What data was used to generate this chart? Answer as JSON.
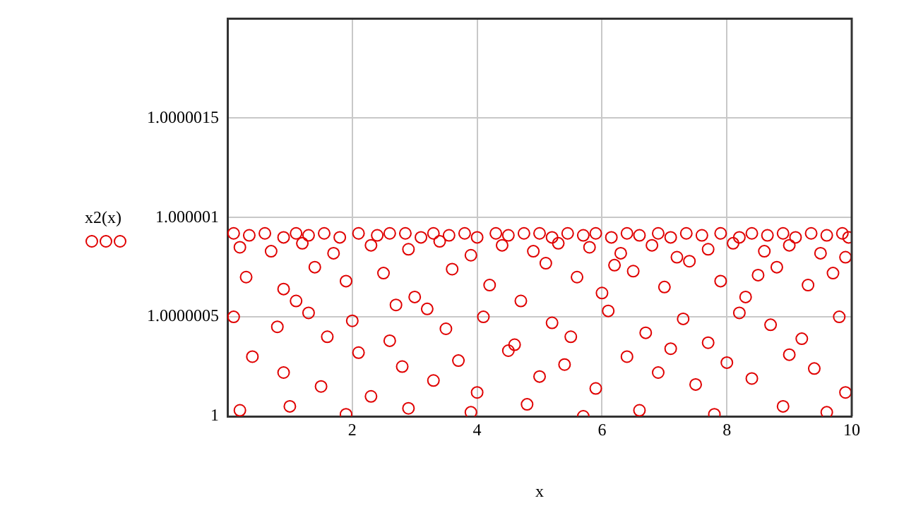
{
  "chart_data": {
    "type": "scatter",
    "xlabel": "x",
    "ylabel": "x2(x)",
    "xlim": [
      0,
      10
    ],
    "xticks": [
      2,
      4,
      6,
      8,
      10
    ],
    "ylim": [
      1,
      1.000002
    ],
    "yticks": [
      1,
      1.0000005,
      1.000001,
      1.0000015
    ],
    "grid": true,
    "legend": false,
    "marker": "circle",
    "x": [
      0.1,
      0.35,
      0.6,
      0.9,
      1.1,
      1.3,
      1.55,
      1.8,
      2.1,
      2.4,
      2.6,
      2.85,
      3.1,
      3.3,
      3.55,
      3.8,
      4.0,
      4.3,
      4.5,
      4.75,
      5.0,
      5.2,
      5.45,
      5.7,
      5.9,
      6.15,
      6.4,
      6.6,
      6.9,
      7.1,
      7.35,
      7.6,
      7.9,
      8.2,
      8.4,
      8.65,
      8.9,
      9.1,
      9.35,
      9.6,
      9.85,
      9.95,
      0.2,
      0.7,
      1.2,
      1.7,
      2.3,
      2.9,
      3.4,
      3.9,
      4.4,
      4.9,
      5.3,
      5.8,
      6.3,
      6.8,
      7.2,
      7.7,
      8.1,
      8.6,
      9.0,
      9.5,
      9.9,
      0.3,
      0.9,
      1.4,
      1.9,
      2.5,
      3.0,
      3.6,
      4.2,
      4.7,
      5.1,
      5.6,
      6.0,
      6.5,
      7.0,
      7.4,
      7.9,
      8.3,
      8.8,
      9.3,
      9.7,
      1.1,
      2.7,
      6.2,
      8.5,
      0.1,
      0.8,
      1.3,
      1.6,
      2.0,
      2.6,
      3.2,
      3.5,
      4.1,
      4.6,
      5.2,
      5.5,
      6.1,
      6.7,
      7.3,
      7.7,
      8.2,
      8.7,
      9.2,
      9.8,
      0.4,
      0.9,
      1.5,
      2.1,
      2.8,
      3.3,
      3.7,
      4.0,
      4.5,
      5.0,
      5.4,
      5.9,
      6.4,
      6.9,
      7.5,
      8.0,
      8.4,
      9.0,
      9.4,
      9.9,
      2.3,
      7.1,
      0.2,
      1.0,
      1.9,
      2.9,
      3.9,
      4.8,
      5.7,
      6.6,
      7.8,
      8.9,
      9.6
    ],
    "series": [
      {
        "color": "#e00000",
        "values": [
          1.00000092,
          1.00000091,
          1.00000092,
          1.0000009,
          1.00000092,
          1.00000091,
          1.00000092,
          1.0000009,
          1.00000092,
          1.00000091,
          1.00000092,
          1.00000092,
          1.0000009,
          1.00000092,
          1.00000091,
          1.00000092,
          1.0000009,
          1.00000092,
          1.00000091,
          1.00000092,
          1.00000092,
          1.0000009,
          1.00000092,
          1.00000091,
          1.00000092,
          1.0000009,
          1.00000092,
          1.00000091,
          1.00000092,
          1.0000009,
          1.00000092,
          1.00000091,
          1.00000092,
          1.0000009,
          1.00000092,
          1.00000091,
          1.00000092,
          1.0000009,
          1.00000092,
          1.00000091,
          1.00000092,
          1.0000009,
          1.00000085,
          1.00000083,
          1.00000087,
          1.00000082,
          1.00000086,
          1.00000084,
          1.00000088,
          1.00000081,
          1.00000086,
          1.00000083,
          1.00000087,
          1.00000085,
          1.00000082,
          1.00000086,
          1.0000008,
          1.00000084,
          1.00000087,
          1.00000083,
          1.00000086,
          1.00000082,
          1.0000008,
          1.0000007,
          1.00000064,
          1.00000075,
          1.00000068,
          1.00000072,
          1.0000006,
          1.00000074,
          1.00000066,
          1.00000058,
          1.00000077,
          1.0000007,
          1.00000062,
          1.00000073,
          1.00000065,
          1.00000078,
          1.00000068,
          1.0000006,
          1.00000075,
          1.00000066,
          1.00000072,
          1.00000058,
          1.00000056,
          1.00000076,
          1.00000071,
          1.0000005,
          1.00000045,
          1.00000052,
          1.0000004,
          1.00000048,
          1.00000038,
          1.00000054,
          1.00000044,
          1.0000005,
          1.00000036,
          1.00000047,
          1.0000004,
          1.00000053,
          1.00000042,
          1.00000049,
          1.00000037,
          1.00000052,
          1.00000046,
          1.00000039,
          1.0000005,
          1.0000003,
          1.00000022,
          1.00000015,
          1.00000032,
          1.00000025,
          1.00000018,
          1.00000028,
          1.00000012,
          1.00000033,
          1.0000002,
          1.00000026,
          1.00000014,
          1.0000003,
          1.00000022,
          1.00000016,
          1.00000027,
          1.00000019,
          1.00000031,
          1.00000024,
          1.00000012,
          1.0000001,
          1.00000034,
          1.00000003,
          1.00000005,
          1.00000001,
          1.00000004,
          1.00000002,
          1.00000006,
          1.0,
          1.00000003,
          1.00000001,
          1.00000005,
          1.00000002
        ]
      }
    ]
  }
}
